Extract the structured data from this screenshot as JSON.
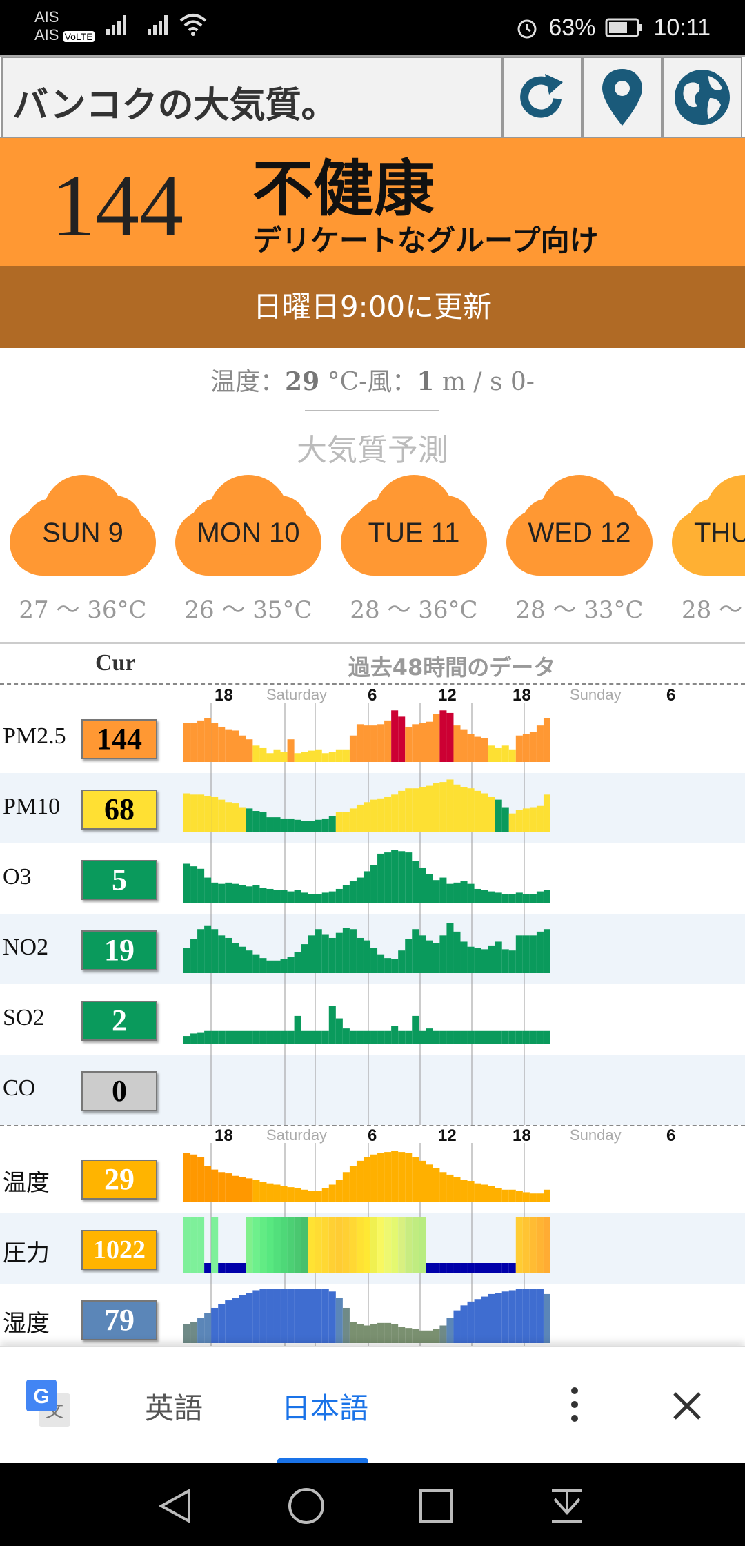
{
  "status_bar": {
    "carrier1": "AIS",
    "carrier2": "AIS",
    "volte": "VoLTE",
    "battery": "63%",
    "time": "10:11"
  },
  "header": {
    "title": "バンコクの大気質。",
    "icons": [
      "refresh-icon",
      "location-pin-icon",
      "globe-icon"
    ]
  },
  "aqi": {
    "value": "144",
    "status": "不健康",
    "status_detail": "デリケートなグループ向け",
    "color": "#ff9833",
    "updated": "日曜日9:00に更新"
  },
  "weather": {
    "label_temp": "温度：",
    "temp": "29",
    "temp_unit": " °C-風：",
    "wind": "1",
    "wind_unit": " m / s 0-"
  },
  "forecast": {
    "title": "大気質予測",
    "days": [
      {
        "day": "SUN 9",
        "range": "27 〜 36°C"
      },
      {
        "day": "MON 10",
        "range": "26 〜 35°C"
      },
      {
        "day": "TUE 11",
        "range": "28 〜 36°C"
      },
      {
        "day": "WED 12",
        "range": "28 〜 33°C"
      },
      {
        "day": "THU",
        "range": "28 〜"
      }
    ]
  },
  "table": {
    "cur_header": "Cur",
    "history_header": "過去48時間のデータ",
    "axis": {
      "h1": "18",
      "d1": "Saturday",
      "h2": "6",
      "h3": "12",
      "h4": "18",
      "d2": "Sunday",
      "h5": "6"
    },
    "rows": [
      {
        "name": "PM2.5",
        "value": "144",
        "color": "#ff9833"
      },
      {
        "name": "PM10",
        "value": "68",
        "color": "#ffe033"
      },
      {
        "name": "O3",
        "value": "5",
        "color": "#0a9a5c"
      },
      {
        "name": "NO2",
        "value": "19",
        "color": "#0a9a5c"
      },
      {
        "name": "SO2",
        "value": "2",
        "color": "#0a9a5c"
      },
      {
        "name": "CO",
        "value": "0",
        "color": "#cccccc"
      },
      {
        "name": "温度",
        "value": "29",
        "color": "#ffb400"
      },
      {
        "name": "圧力",
        "value": "1022",
        "color": "#ffb400"
      },
      {
        "name": "湿度",
        "value": "79",
        "color": "#5b86b8"
      }
    ]
  },
  "chart_data": [
    {
      "type": "bar",
      "name": "PM2.5",
      "values": [
        62,
        62,
        66,
        70,
        62,
        56,
        52,
        50,
        42,
        36,
        26,
        22,
        14,
        20,
        16,
        36,
        14,
        16,
        18,
        20,
        14,
        16,
        20,
        20,
        42,
        60,
        58,
        58,
        60,
        66,
        82,
        72,
        56,
        60,
        62,
        64,
        76,
        82,
        78,
        58,
        52,
        44,
        40,
        38,
        26,
        22,
        26,
        20,
        42,
        44,
        48,
        58,
        70
      ],
      "levels": [
        2,
        2,
        2,
        2,
        2,
        2,
        2,
        2,
        2,
        2,
        1,
        1,
        1,
        1,
        1,
        2,
        1,
        1,
        1,
        1,
        1,
        1,
        1,
        1,
        2,
        2,
        2,
        2,
        2,
        2,
        4,
        4,
        2,
        2,
        2,
        2,
        2,
        4,
        4,
        2,
        2,
        2,
        2,
        2,
        1,
        1,
        1,
        1,
        2,
        2,
        2,
        2,
        2
      ]
    },
    {
      "type": "bar",
      "name": "PM10",
      "values": [
        62,
        60,
        60,
        58,
        56,
        52,
        48,
        46,
        40,
        38,
        34,
        32,
        24,
        24,
        22,
        22,
        20,
        18,
        18,
        20,
        22,
        26,
        32,
        32,
        38,
        44,
        48,
        52,
        54,
        56,
        60,
        66,
        70,
        70,
        72,
        74,
        78,
        80,
        84,
        76,
        72,
        70,
        66,
        62,
        56,
        52,
        40,
        30,
        36,
        38,
        40,
        42,
        60
      ],
      "levels": [
        1,
        1,
        1,
        1,
        1,
        1,
        1,
        1,
        1,
        3,
        3,
        3,
        3,
        3,
        3,
        3,
        3,
        3,
        3,
        3,
        3,
        3,
        1,
        1,
        1,
        1,
        1,
        1,
        1,
        1,
        1,
        1,
        1,
        1,
        1,
        1,
        1,
        1,
        1,
        1,
        1,
        1,
        1,
        1,
        1,
        3,
        3,
        1,
        1,
        1,
        1,
        1,
        1
      ]
    },
    {
      "type": "bar",
      "name": "O3",
      "values": [
        62,
        58,
        54,
        40,
        32,
        30,
        32,
        30,
        28,
        26,
        28,
        24,
        22,
        20,
        20,
        18,
        20,
        16,
        14,
        14,
        16,
        18,
        22,
        28,
        34,
        40,
        50,
        60,
        78,
        80,
        84,
        82,
        80,
        66,
        56,
        46,
        36,
        40,
        30,
        32,
        34,
        30,
        22,
        20,
        18,
        16,
        14,
        14,
        16,
        14,
        14,
        18,
        20
      ]
    },
    {
      "type": "bar",
      "name": "NO2",
      "values": [
        40,
        54,
        70,
        76,
        70,
        60,
        56,
        48,
        42,
        36,
        30,
        24,
        20,
        20,
        22,
        26,
        34,
        46,
        60,
        70,
        62,
        56,
        64,
        72,
        70,
        56,
        52,
        40,
        30,
        24,
        22,
        36,
        54,
        70,
        60,
        52,
        48,
        60,
        80,
        66,
        50,
        42,
        40,
        38,
        44,
        50,
        38,
        36,
        60,
        60,
        60,
        66,
        70
      ]
    },
    {
      "type": "bar",
      "name": "SO2",
      "values": [
        12,
        16,
        18,
        20,
        20,
        20,
        20,
        20,
        20,
        20,
        20,
        20,
        20,
        20,
        20,
        20,
        44,
        20,
        20,
        20,
        20,
        60,
        40,
        24,
        20,
        20,
        20,
        20,
        20,
        20,
        28,
        20,
        20,
        44,
        20,
        24,
        20,
        20,
        20,
        20,
        20,
        20,
        20,
        20,
        20,
        20,
        20,
        20,
        20,
        20,
        20,
        20,
        20
      ]
    },
    {
      "type": "bar",
      "name": "CO",
      "values": []
    },
    {
      "type": "bar",
      "name": "温度",
      "values": [
        78,
        76,
        72,
        58,
        52,
        48,
        46,
        42,
        40,
        38,
        36,
        32,
        30,
        28,
        26,
        24,
        22,
        20,
        18,
        18,
        22,
        28,
        36,
        48,
        58,
        66,
        72,
        76,
        78,
        80,
        82,
        80,
        78,
        72,
        66,
        60,
        54,
        48,
        44,
        40,
        36,
        34,
        30,
        28,
        26,
        22,
        20,
        20,
        18,
        16,
        14,
        14,
        20
      ]
    },
    {
      "type": "bar",
      "name": "圧力",
      "values": [
        1019,
        1019,
        1019,
        1016,
        1019,
        1016,
        1016,
        1016,
        1016,
        1019,
        1019,
        1019,
        1019,
        1019,
        1019,
        1019,
        1019,
        1019,
        1021,
        1021,
        1021,
        1021,
        1021,
        1021,
        1021,
        1021,
        1021,
        1021,
        1021,
        1021,
        1021,
        1021,
        1021,
        1020,
        1020,
        1016,
        1016,
        1016,
        1016,
        1016,
        1016,
        1016,
        1016,
        1016,
        1016,
        1016,
        1016,
        1016,
        1022,
        1022,
        1022,
        1022,
        1022
      ],
      "level_colors": [
        "#7ef09a",
        "#7ef09a",
        "#7ef09a",
        "#0000aa",
        "#7ef09a",
        "#0000aa",
        "#0000aa",
        "#0000aa",
        "#0000aa",
        "#80f08c",
        "#6ef08c",
        "#62ec84",
        "#58e880",
        "#52e07c",
        "#4ed878",
        "#4cd074",
        "#4ac870",
        "#48c06c",
        "#ffe233",
        "#ffdc33",
        "#ffd833",
        "#ffd033",
        "#ffcc33",
        "#ffd033",
        "#ffd833",
        "#ffe233",
        "#ffe833",
        "#f0f050",
        "#f8f860",
        "#eef870",
        "#e4f870",
        "#d8f080",
        "#c8ec80",
        "#c0ec80",
        "#b8ec80",
        "#0000aa",
        "#0000aa",
        "#0000aa",
        "#0000aa",
        "#0000aa",
        "#0000aa",
        "#0000aa",
        "#0000aa",
        "#0000aa",
        "#0000aa",
        "#0000aa",
        "#0000aa",
        "#0000aa",
        "#ffcc33",
        "#ffc433",
        "#ffbc33",
        "#ffb433",
        "#ffac33"
      ]
    },
    {
      "type": "bar",
      "name": "湿度",
      "values": [
        30,
        34,
        40,
        48,
        56,
        62,
        68,
        72,
        76,
        80,
        84,
        86,
        86,
        86,
        86,
        86,
        86,
        86,
        86,
        86,
        86,
        82,
        72,
        56,
        34,
        30,
        28,
        30,
        32,
        32,
        30,
        26,
        24,
        22,
        20,
        20,
        22,
        28,
        40,
        52,
        60,
        66,
        70,
        74,
        78,
        80,
        82,
        84,
        86,
        86,
        86,
        86,
        78
      ],
      "level_colors": [
        "#6f8a87",
        "#6f8a87",
        "#5b86b8",
        "#5b86b8",
        "#3f6dd0",
        "#3f6dd0",
        "#3f6dd0",
        "#3f6dd0",
        "#3f6dd0",
        "#3f6dd0",
        "#3f6dd0",
        "#3f6dd0",
        "#3f6dd0",
        "#3f6dd0",
        "#3f6dd0",
        "#3f6dd0",
        "#3f6dd0",
        "#3f6dd0",
        "#3f6dd0",
        "#3f6dd0",
        "#3f6dd0",
        "#3f6dd0",
        "#5b86b8",
        "#6f8a87",
        "#7a9070",
        "#7a9070",
        "#7a9070",
        "#7a9070",
        "#7a9070",
        "#7a9070",
        "#7a9070",
        "#7a9070",
        "#7a9070",
        "#7a9070",
        "#7a9070",
        "#7a9070",
        "#7a9070",
        "#6f8a87",
        "#5b86b8",
        "#3f6dd0",
        "#3f6dd0",
        "#3f6dd0",
        "#3f6dd0",
        "#3f6dd0",
        "#3f6dd0",
        "#3f6dd0",
        "#3f6dd0",
        "#3f6dd0",
        "#3f6dd0",
        "#3f6dd0",
        "#3f6dd0",
        "#3f6dd0",
        "#5b86b8"
      ]
    }
  ],
  "colors": {
    "level1": "#fde033",
    "level2": "#ff9833",
    "level3": "#0a9a5c",
    "level4": "#cc0033"
  },
  "translate": {
    "lang1": "英語",
    "lang2": "日本語",
    "accent": "#1a73e8"
  },
  "nav": {
    "icons": [
      "back-icon",
      "home-icon",
      "recents-icon",
      "notification-icon"
    ]
  }
}
